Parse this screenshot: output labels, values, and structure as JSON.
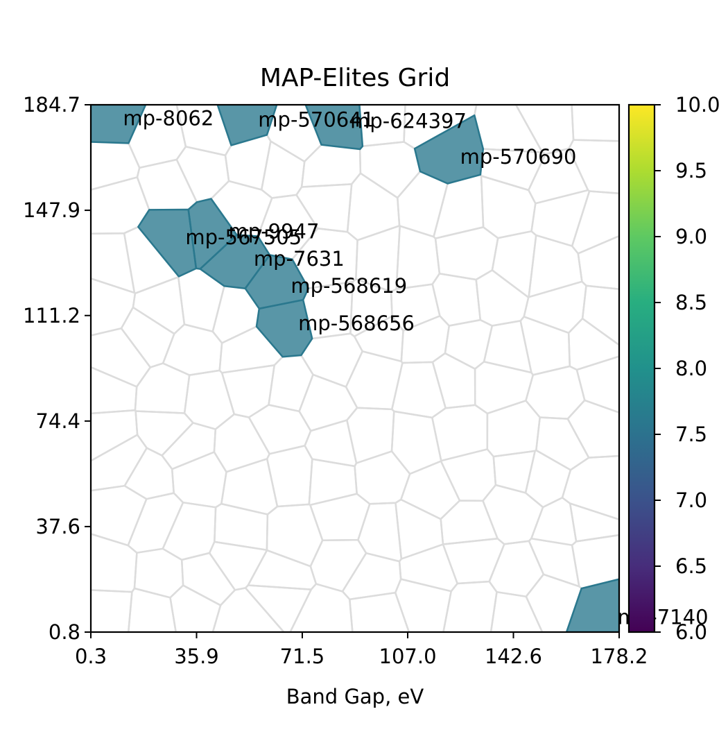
{
  "chart_data": {
    "type": "heatmap",
    "subtype": "voronoi-map-elites",
    "title": "MAP-Elites Grid",
    "xlabel": "Band Gap, eV",
    "ylabel": "",
    "xlim": [
      0.3,
      178.2
    ],
    "ylim": [
      0.8,
      184.7
    ],
    "xticks": [
      "0.3",
      "35.9",
      "71.5",
      "107.0",
      "142.6",
      "178.2"
    ],
    "yticks": [
      "0.8",
      "37.6",
      "74.4",
      "111.2",
      "147.9",
      "184.7"
    ],
    "grid": true,
    "colorbar": {
      "colormap": "viridis",
      "min": 6.0,
      "max": 10.0,
      "tick_labels": [
        "6.0",
        "6.5",
        "7.0",
        "7.5",
        "8.0",
        "8.5",
        "9.0",
        "9.5",
        "10.0"
      ]
    },
    "fill_color": "#2a788e",
    "cells": [
      {
        "label": "mp-8062",
        "x": 6.0,
        "y": 180.0,
        "value": 7.6
      },
      {
        "label": "mp-570641",
        "x": 51.5,
        "y": 179.5,
        "value": 7.6
      },
      {
        "label": "mp-624397",
        "x": 82.5,
        "y": 179.0,
        "value": 7.6
      },
      {
        "label": "mp-570690",
        "x": 119.5,
        "y": 166.5,
        "value": 7.6
      },
      {
        "label": "mp-567505",
        "x": 27.0,
        "y": 138.5,
        "value": 7.6
      },
      {
        "label": "mp-9947",
        "x": 41.5,
        "y": 140.5,
        "value": 7.6
      },
      {
        "label": "mp-7631",
        "x": 50.0,
        "y": 131.0,
        "value": 7.6
      },
      {
        "label": "mp-568619",
        "x": 62.5,
        "y": 121.5,
        "value": 7.6
      },
      {
        "label": "mp-568656",
        "x": 65.0,
        "y": 108.5,
        "value": 7.6
      },
      {
        "label": "mp-7140",
        "x": 172.5,
        "y": 6.0,
        "value": 7.6
      }
    ]
  }
}
